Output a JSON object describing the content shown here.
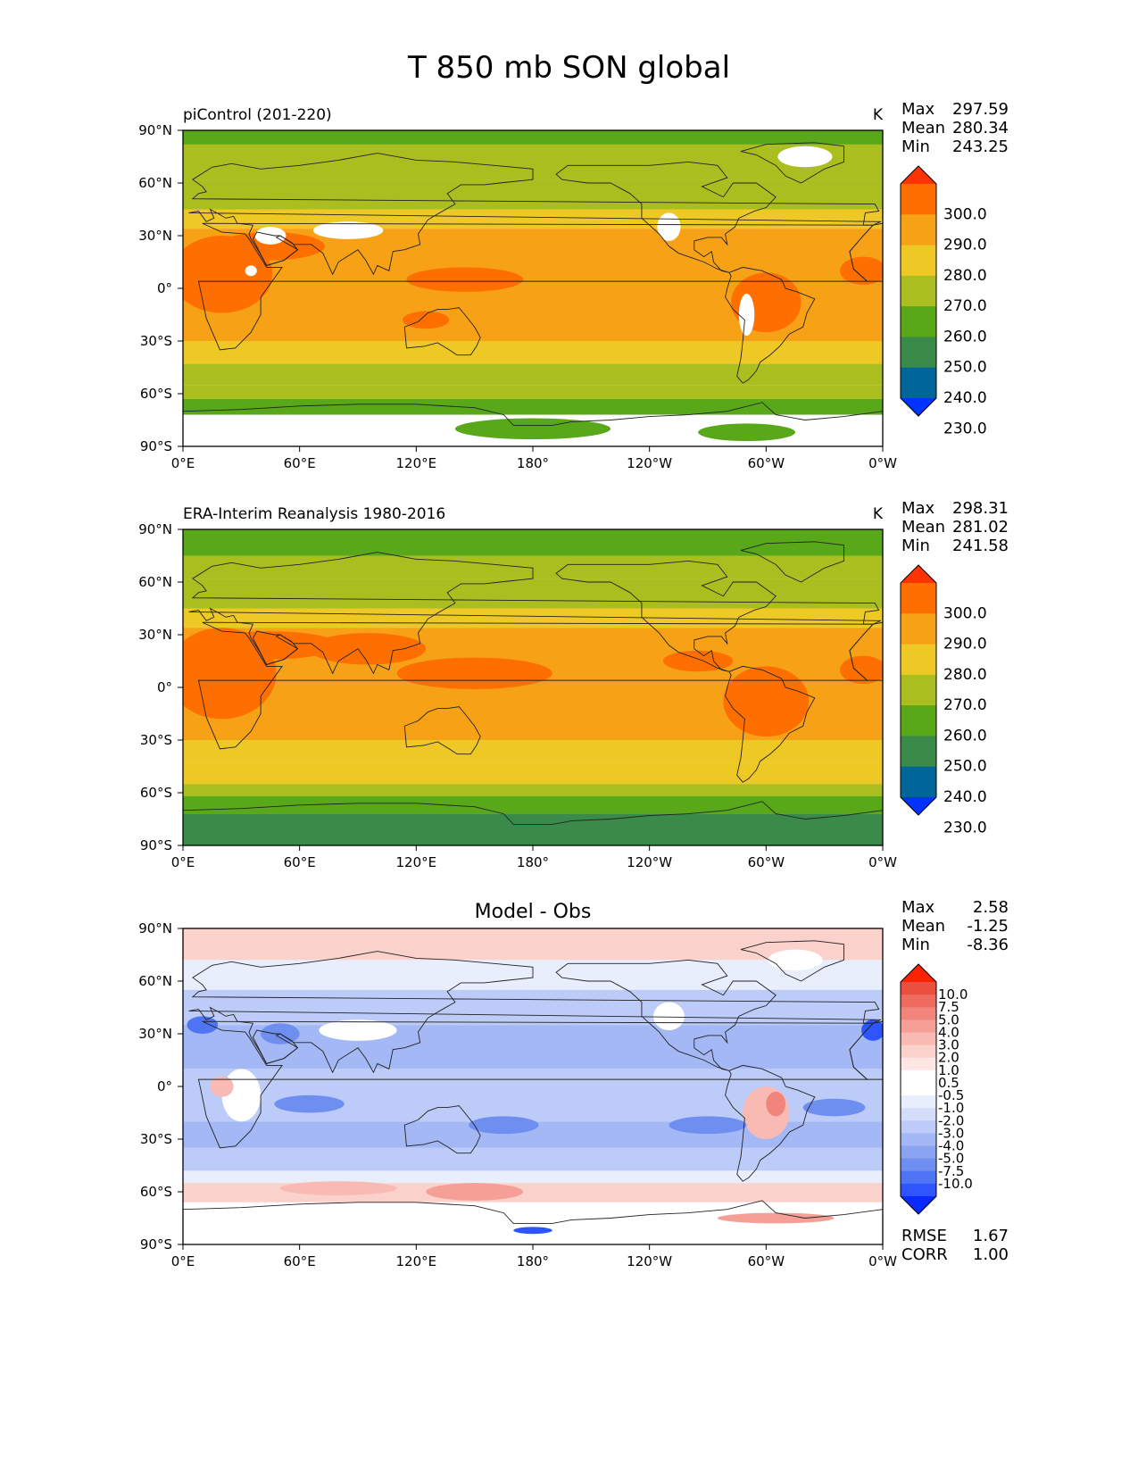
{
  "title": "T 850 mb SON global",
  "colors": {
    "abs_levels": [
      "#0033ff",
      "#006699",
      "#3a8a4a",
      "#59a81a",
      "#aabf1f",
      "#eec926",
      "#f7a216",
      "#ff6f00",
      "#ff3300"
    ],
    "diff_levels": [
      "#0a2bff",
      "#2e55ff",
      "#4f75f5",
      "#6f8ff0",
      "#8aa4f2",
      "#a3b8f5",
      "#bccbf7",
      "#d4defa",
      "#e8eefc",
      "#ffffff",
      "#ffffff",
      "#fde6e4",
      "#fbd1cc",
      "#f8bab3",
      "#f59f97",
      "#f2857b",
      "#ee6b5e",
      "#ea4f40",
      "#ff2200"
    ],
    "land_outline": "#222222"
  },
  "axes": {
    "lat_ticks": [
      "90°N",
      "60°N",
      "30°N",
      "0°",
      "30°S",
      "60°S",
      "90°S"
    ],
    "lon_ticks": [
      "0°E",
      "60°E",
      "120°E",
      "180°",
      "120°W",
      "60°W",
      "0°W"
    ]
  },
  "panels": [
    {
      "kind": "abs",
      "left_title": "piControl (201-220)",
      "center_title": "",
      "units": "K",
      "stats": {
        "max_label": "Max",
        "max": "297.59",
        "mean_label": "Mean",
        "mean": "280.34",
        "min_label": "Min",
        "min": "243.25"
      },
      "colorbar_labels": [
        "300.0",
        "290.0",
        "280.0",
        "270.0",
        "260.0",
        "250.0",
        "240.0",
        "230.0"
      ],
      "extra": []
    },
    {
      "kind": "abs",
      "left_title": "ERA-Interim Reanalysis 1980-2016",
      "center_title": "",
      "units": "K",
      "stats": {
        "max_label": "Max",
        "max": "298.31",
        "mean_label": "Mean",
        "mean": "281.02",
        "min_label": "Min",
        "min": "241.58"
      },
      "colorbar_labels": [
        "300.0",
        "290.0",
        "280.0",
        "270.0",
        "260.0",
        "250.0",
        "240.0",
        "230.0"
      ],
      "extra": []
    },
    {
      "kind": "diff",
      "left_title": "",
      "center_title": "Model - Obs",
      "units": "",
      "stats": {
        "max_label": "Max",
        "max": "2.58",
        "mean_label": "Mean",
        "mean": "-1.25",
        "min_label": "Min",
        "min": "-8.36"
      },
      "colorbar_labels": [
        "10.0",
        "7.5",
        "5.0",
        "4.0",
        "3.0",
        "2.0",
        "1.0",
        "0.5",
        "-0.5",
        "-1.0",
        "-2.0",
        "-3.0",
        "-4.0",
        "-5.0",
        "-7.5",
        "-10.0"
      ],
      "extra": [
        {
          "label": "RMSE",
          "value": "1.67"
        },
        {
          "label": "CORR",
          "value": "1.00"
        }
      ]
    }
  ]
}
